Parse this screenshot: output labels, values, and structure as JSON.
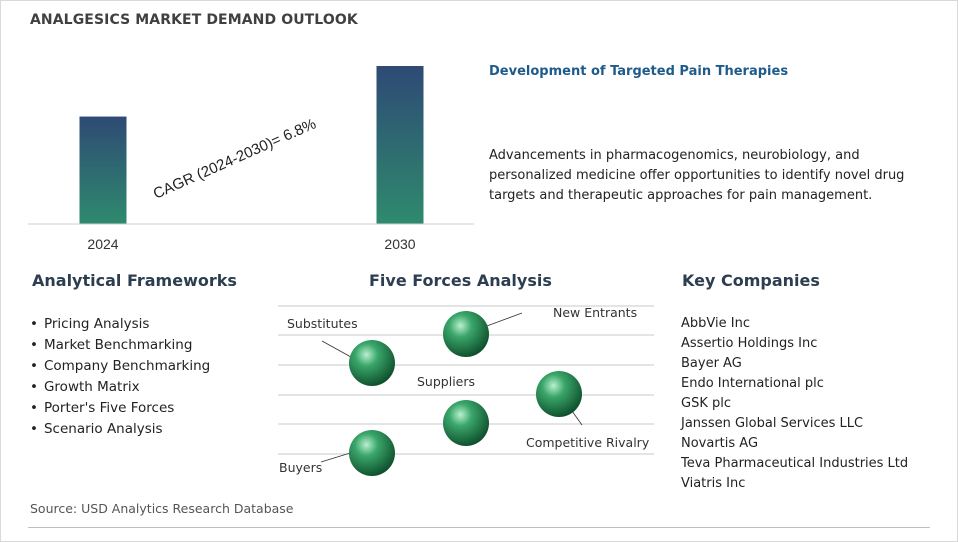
{
  "header": {
    "title": "ANALGESICS MARKET DEMAND OUTLOOK"
  },
  "chart_data": {
    "type": "bar",
    "categories": [
      "2024",
      "2030"
    ],
    "values": [
      0.68,
      1.0
    ],
    "annotation": "CAGR (2024-2030)=  6.8%",
    "colors": {
      "bar_top": "#2e4a74",
      "bar_bottom": "#2e8a6e"
    }
  },
  "highlight": {
    "title": "Development of Targeted Pain Therapies",
    "text": "Advancements in pharmacogenomics, neurobiology, and personalized medicine offer opportunities to identify novel drug targets and therapeutic approaches for pain management."
  },
  "frameworks": {
    "heading": "Analytical Frameworks",
    "items": [
      "Pricing Analysis",
      "Market Benchmarking",
      "Company Benchmarking",
      "Growth Matrix",
      "Porter's Five Forces",
      "Scenario Analysis"
    ]
  },
  "five_forces": {
    "heading": "Five Forces Analysis",
    "labels": [
      "Substitutes",
      "New Entrants",
      "Suppliers",
      "Competitive Rivalry",
      "Buyers"
    ],
    "sphere_color": "#3aa66a"
  },
  "companies": {
    "heading": "Key Companies",
    "items": [
      "AbbVie Inc",
      "Assertio Holdings Inc",
      "Bayer AG",
      "Endo International plc",
      "GSK plc",
      "Janssen Global Services LLC",
      "Novartis AG",
      "Teva Pharmaceutical Industries Ltd",
      "Viatris Inc"
    ]
  },
  "footer": {
    "source": "Source: USD Analytics Research Database"
  }
}
